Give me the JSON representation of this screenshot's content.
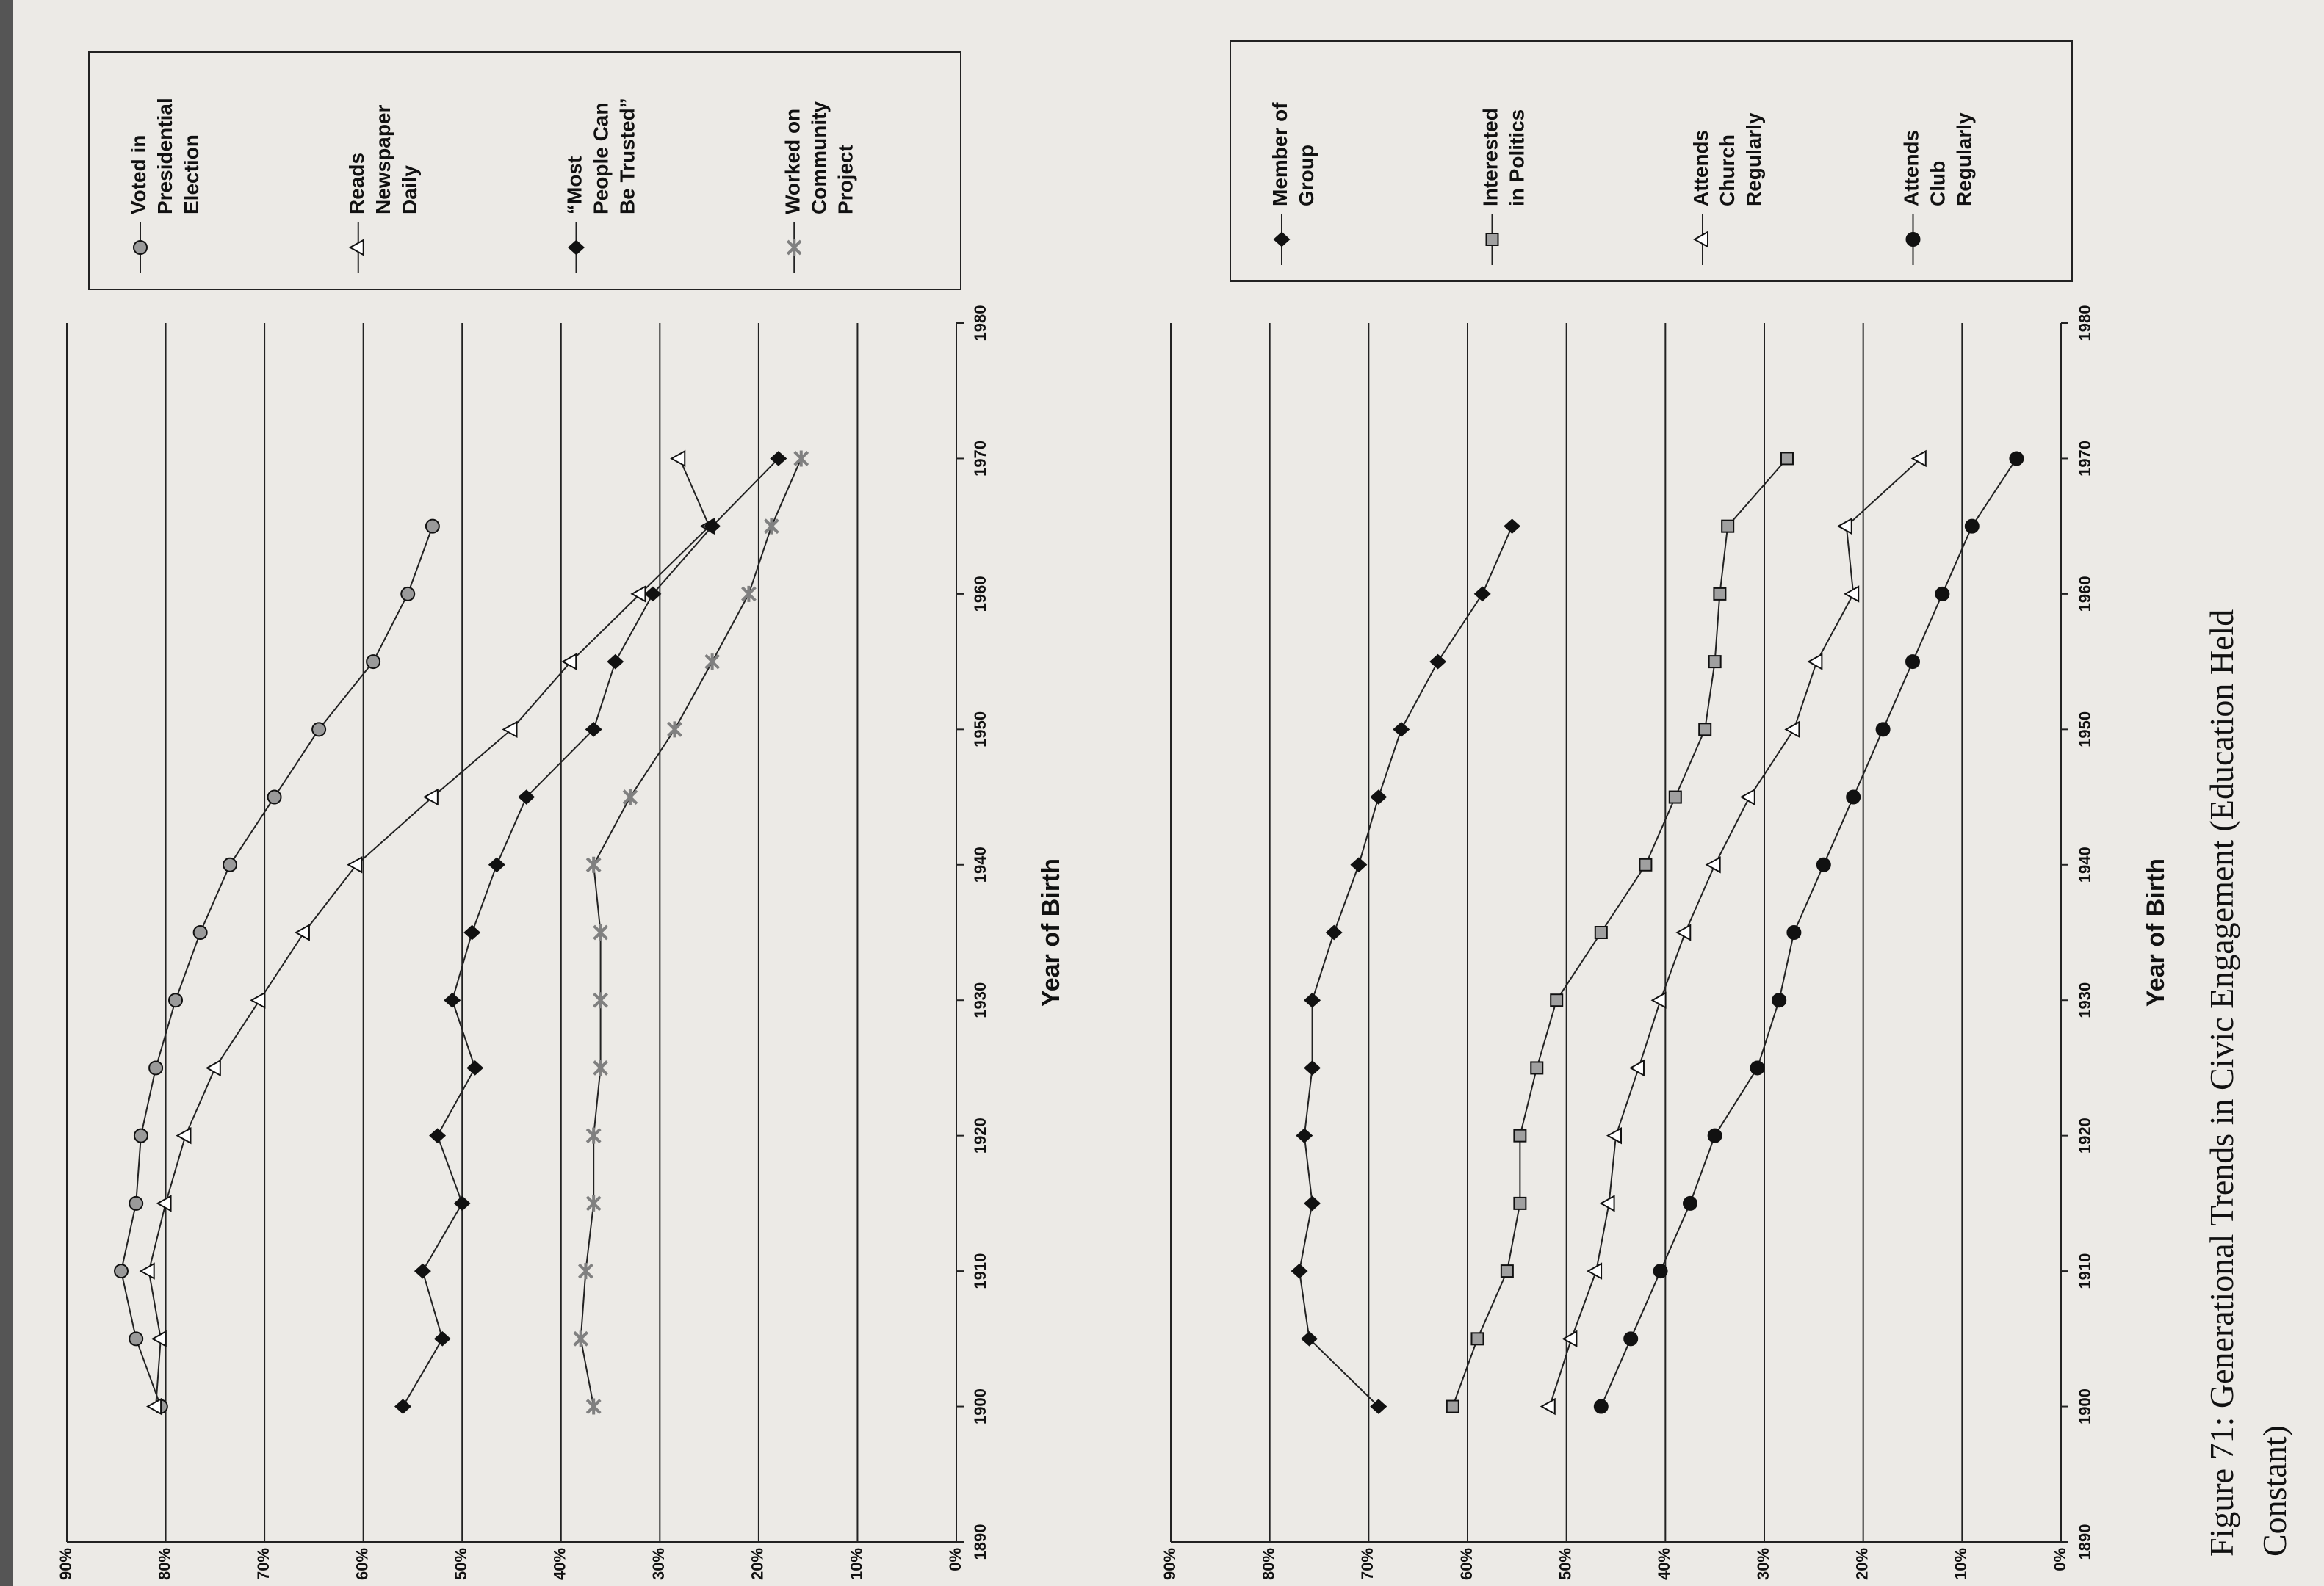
{
  "chart_data": [
    {
      "type": "line",
      "x_label": "Year of Birth",
      "x": [
        1900,
        1905,
        1910,
        1915,
        1920,
        1925,
        1930,
        1935,
        1940,
        1945,
        1950,
        1955,
        1960,
        1965,
        1970
      ],
      "series": [
        {
          "name": "Voted in Presidential Election",
          "color": "#9a9a9a",
          "marker": "circle",
          "values": [
            80.5,
            83,
            84.5,
            83,
            82.5,
            81,
            79,
            76.5,
            73.5,
            69,
            64.5,
            59,
            55.5,
            53,
            null
          ]
        },
        {
          "name": "Reads Newspaper Daily",
          "color": "#ffffff",
          "marker": "triangle",
          "values": [
            81,
            80.5,
            81.7,
            80,
            78,
            75,
            70.5,
            66,
            60.7,
            53,
            45,
            39,
            32,
            25,
            28
          ]
        },
        {
          "name": "“Most People Can Be Trusted”",
          "color": "#111111",
          "marker": "diamond",
          "values": [
            56,
            52,
            54,
            50,
            52.5,
            48.7,
            51,
            49,
            46.5,
            43.5,
            36.7,
            34.5,
            30.7,
            24.7,
            18
          ]
        },
        {
          "name": "Worked on Community Project",
          "color": "#808080",
          "marker": "asterisk",
          "values": [
            36.7,
            38,
            37.5,
            36.7,
            36.7,
            36,
            36,
            36,
            36.7,
            33,
            28.5,
            24.7,
            21,
            18.7,
            15.7
          ]
        }
      ],
      "xlim": [
        1890,
        1980
      ],
      "ylim": [
        0,
        90
      ],
      "xticks": [
        1890,
        1900,
        1910,
        1920,
        1930,
        1940,
        1950,
        1960,
        1970,
        1980
      ],
      "yticks": [
        {
          "value": 0,
          "label": "0%"
        },
        {
          "value": 10,
          "label": "10%"
        },
        {
          "value": 20,
          "label": "20%"
        },
        {
          "value": 30,
          "label": "30%"
        },
        {
          "value": 40,
          "label": "40%"
        },
        {
          "value": 50,
          "label": "50%"
        },
        {
          "value": 60,
          "label": "60%"
        },
        {
          "value": 70,
          "label": "70%"
        },
        {
          "value": 80,
          "label": "80%"
        },
        {
          "value": 90,
          "label": "90%"
        }
      ],
      "grid": true
    },
    {
      "type": "line",
      "x_label": "Year of Birth",
      "x": [
        1900,
        1905,
        1910,
        1915,
        1920,
        1925,
        1930,
        1935,
        1940,
        1945,
        1950,
        1955,
        1960,
        1965,
        1970
      ],
      "series": [
        {
          "name": "Member of Group",
          "color": "#111111",
          "marker": "diamond",
          "values": [
            69,
            76,
            77,
            75.7,
            76.5,
            75.7,
            75.7,
            73.5,
            71,
            69,
            66.7,
            63,
            58.5,
            55.5,
            null
          ]
        },
        {
          "name": "Interested in Politics",
          "color": "#a0a0a0",
          "marker": "square",
          "values": [
            61.5,
            59,
            56,
            54.7,
            54.7,
            53,
            51,
            46.5,
            42,
            39,
            36,
            35,
            34.5,
            33.7,
            27.7
          ]
        },
        {
          "name": "Attends Church Regularly",
          "color": "#ffffff",
          "marker": "triangle",
          "values": [
            51.7,
            49.5,
            47,
            45.7,
            45,
            42.7,
            40.5,
            38,
            35,
            31.5,
            27,
            24.7,
            21,
            21.7,
            14.2
          ]
        },
        {
          "name": "Attends Club Regularly",
          "color": "#111111",
          "marker": "circle",
          "values": [
            46.5,
            43.5,
            40.5,
            37.5,
            35,
            30.7,
            28.5,
            27,
            24,
            21,
            18,
            15,
            12,
            9,
            4.5
          ]
        }
      ],
      "xlim": [
        1890,
        1980
      ],
      "ylim": [
        0,
        90
      ],
      "xticks": [
        1890,
        1900,
        1910,
        1920,
        1930,
        1940,
        1950,
        1960,
        1970,
        1980
      ],
      "yticks": [
        {
          "value": 0,
          "label": "0%"
        },
        {
          "value": 10,
          "label": "10%"
        },
        {
          "value": 20,
          "label": "20%"
        },
        {
          "value": 30,
          "label": "30%"
        },
        {
          "value": 40,
          "label": "40%"
        },
        {
          "value": 50,
          "label": "50%"
        },
        {
          "value": 60,
          "label": "60%"
        },
        {
          "value": 70,
          "label": "70%"
        },
        {
          "value": 80,
          "label": "80%"
        },
        {
          "value": 90,
          "label": "90%"
        }
      ],
      "grid": true
    }
  ],
  "caption": "Figure 71: Generational Trends in Civic Engagement (Education Held Constant)"
}
